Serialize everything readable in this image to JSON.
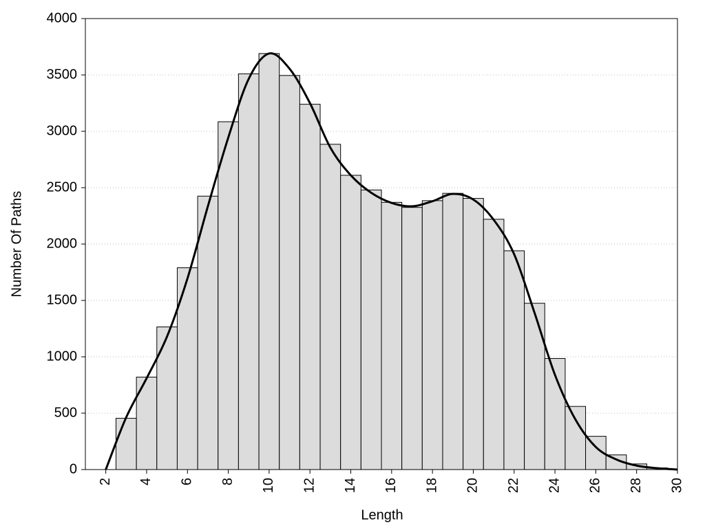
{
  "chart_data": {
    "type": "histogram",
    "x_label": "Length",
    "y_label": "Number Of Paths",
    "bins": [
      2.5,
      3.5,
      4.5,
      5.5,
      6.5,
      7.5,
      8.5,
      9.5,
      10.5,
      11.5,
      12.5,
      13.5,
      14.5,
      15.5,
      16.5,
      17.5,
      18.5,
      19.5,
      20.5,
      21.5,
      22.5,
      23.5,
      24.5,
      25.5,
      26.5,
      27.5,
      28.5,
      29.5
    ],
    "values": [
      455,
      820,
      1265,
      1790,
      2425,
      3085,
      3510,
      3690,
      3495,
      3240,
      2885,
      2610,
      2480,
      2370,
      2325,
      2385,
      2450,
      2405,
      2220,
      1940,
      1475,
      985,
      560,
      295,
      130,
      50,
      15
    ],
    "color": "#dcdcdc",
    "line": {
      "type": "line",
      "color": "#000000",
      "x": [
        2,
        3,
        4,
        5,
        6,
        7,
        8,
        9,
        10,
        11,
        12,
        13,
        14,
        15,
        16,
        17,
        18,
        19,
        20,
        21,
        22,
        23,
        24,
        25,
        26,
        27,
        28,
        29,
        30
      ],
      "values": [
        0,
        463,
        810,
        1180,
        1695,
        2335,
        2945,
        3465,
        3690,
        3555,
        3250,
        2855,
        2610,
        2455,
        2365,
        2335,
        2380,
        2445,
        2395,
        2215,
        1910,
        1390,
        840,
        445,
        200,
        90,
        35,
        12,
        0
      ]
    },
    "xlim": [
      1,
      30
    ],
    "xticks": [
      2,
      4,
      6,
      8,
      10,
      12,
      14,
      16,
      18,
      20,
      22,
      24,
      26,
      28,
      30
    ],
    "ylim": [
      0,
      4000
    ],
    "yticks": [
      0,
      500,
      1000,
      1500,
      2000,
      2500,
      3000,
      3500,
      4000
    ],
    "grid": true
  }
}
